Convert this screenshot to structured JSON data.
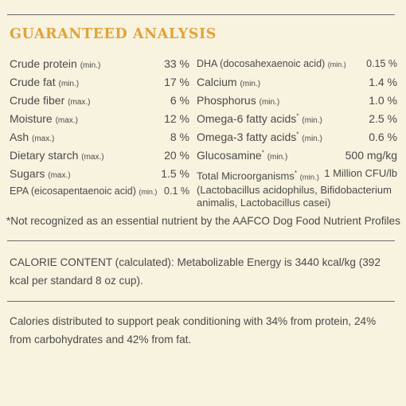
{
  "title": "GUARANTEED ANALYSIS",
  "left_items": [
    {
      "name": "Crude protein",
      "qual": "(min.)",
      "value": "33 %"
    },
    {
      "name": "Crude fat",
      "qual": "(min.)",
      "value": "17 %"
    },
    {
      "name": "Crude fiber",
      "qual": "(max.)",
      "value": "6 %"
    },
    {
      "name": "Moisture",
      "qual": "(max.)",
      "value": "12 %"
    },
    {
      "name": "Ash",
      "qual": "(max.)",
      "value": "8 %"
    },
    {
      "name": "Dietary starch",
      "qual": "(max.)",
      "value": "20 %"
    },
    {
      "name": "Sugars",
      "qual": "(max.)",
      "value": "1.5 %"
    },
    {
      "name": "EPA (eicosapentaenoic acid)",
      "qual": "(min.)",
      "value": "0.1 %"
    }
  ],
  "right_items": [
    {
      "name": "DHA (docosahexaenoic acid)",
      "mark": "",
      "qual": "(min.)",
      "value": "0.15 %"
    },
    {
      "name": "Calcium",
      "mark": "",
      "qual": "(min.)",
      "value": "1.4 %"
    },
    {
      "name": "Phosphorus",
      "mark": "",
      "qual": "(min.)",
      "value": "1.0 %"
    },
    {
      "name": "Omega-6 fatty acids",
      "mark": "*",
      "qual": "(min.)",
      "value": "2.5 %"
    },
    {
      "name": "Omega-3 fatty acids",
      "mark": "*",
      "qual": "(min.)",
      "value": "0.6 %"
    },
    {
      "name": "Glucosamine",
      "mark": "*",
      "qual": "(min.)",
      "value": "500 mg/kg"
    }
  ],
  "microorganisms": {
    "name": "Total Microorganisms",
    "mark": "*",
    "qual": "(min.)",
    "value": "1 Million CFU/lb",
    "strains": "(Lactobacillus acidophilus, Bifidobacterium animalis, Lactobacillus casei)"
  },
  "footnote": "*Not recognized as an essential nutrient by the AAFCO Dog Food Nutrient Profiles",
  "calorie_content": "CALORIE CONTENT (calculated): Metabolizable Energy is 3440 kcal/kg (392 kcal per standard 8 oz cup).",
  "calorie_distribution": "Calories distributed to support peak conditioning with 34% from protein, 24% from carbohydrates and 42% from fat."
}
